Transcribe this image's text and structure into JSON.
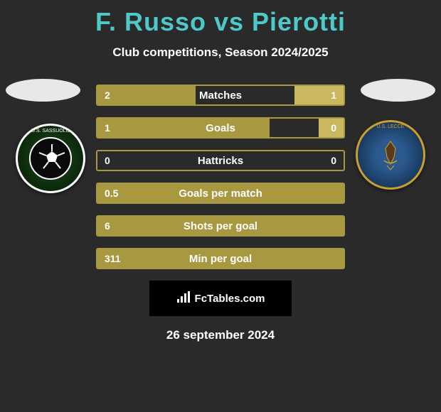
{
  "title": "F. Russo vs Pierotti",
  "subtitle": "Club competitions, Season 2024/2025",
  "date": "26 september 2024",
  "fctables_label": "FcTables.com",
  "colors": {
    "title_color": "#4ec9c9",
    "text_color": "#ffffff",
    "background": "#2a2a2a",
    "border_color": "#a89840",
    "fill_left": "#a89840",
    "fill_right": "#c9b860"
  },
  "badges": {
    "left": {
      "name": "U.S. SASSUOLO",
      "primary_color": "#1a3a1a",
      "border_color": "#ffffff"
    },
    "right": {
      "name": "U.S. LECCE",
      "primary_color": "#2b5a8f",
      "border_color": "#c9a030"
    }
  },
  "bars": [
    {
      "label": "Matches",
      "left_value": "2",
      "right_value": "1",
      "left_width_pct": 40,
      "right_width_pct": 20,
      "show_right": true
    },
    {
      "label": "Goals",
      "left_value": "1",
      "right_value": "0",
      "left_width_pct": 70,
      "right_width_pct": 10,
      "show_right": true
    },
    {
      "label": "Hattricks",
      "left_value": "0",
      "right_value": "0",
      "left_width_pct": 0,
      "right_width_pct": 0,
      "show_right": true
    },
    {
      "label": "Goals per match",
      "left_value": "0.5",
      "right_value": "",
      "left_width_pct": 100,
      "right_width_pct": 0,
      "show_right": false
    },
    {
      "label": "Shots per goal",
      "left_value": "6",
      "right_value": "",
      "left_width_pct": 100,
      "right_width_pct": 0,
      "show_right": false
    },
    {
      "label": "Min per goal",
      "left_value": "311",
      "right_value": "",
      "left_width_pct": 100,
      "right_width_pct": 0,
      "show_right": false
    }
  ]
}
